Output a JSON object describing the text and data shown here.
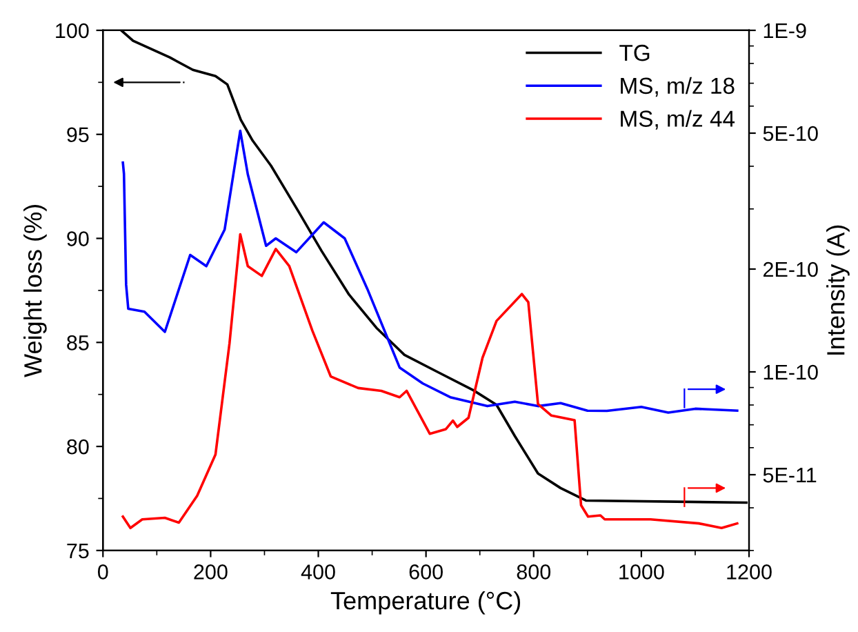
{
  "chart_data": {
    "type": "line",
    "xlabel": "Temperature (°C)",
    "ylabel": "Weight loss (%)",
    "y2label": "Intensity (A)",
    "xlim": [
      0,
      1200
    ],
    "xticks": [
      0,
      200,
      400,
      600,
      800,
      1000,
      1200
    ],
    "ylim": [
      75,
      100
    ],
    "yticks": [
      75,
      80,
      85,
      90,
      95,
      100
    ],
    "y2lim": [
      3e-11,
      1e-09
    ],
    "y2ticks": [
      {
        "value": 5e-11,
        "label": "5E-11"
      },
      {
        "value": 1e-10,
        "label": "1E-10"
      },
      {
        "value": 2e-10,
        "label": "2E-10"
      },
      {
        "value": 5e-10,
        "label": "5E-10"
      },
      {
        "value": 1e-09,
        "label": "1E-9"
      }
    ],
    "log": "y2",
    "grid": false,
    "legend": "top right",
    "marker": "none",
    "line_style": "solid",
    "series": [
      {
        "name": "TG",
        "color": "#000000",
        "x": [
          34,
          56,
          124,
          167,
          209,
          231,
          256,
          278,
          312,
          363,
          406,
          457,
          508,
          560,
          620,
          688,
          731,
          765,
          808,
          850,
          897,
          1195
        ],
        "values": [
          100,
          99.5,
          98.7,
          98.1,
          97.8,
          97.4,
          95.7,
          94.7,
          93.5,
          91.3,
          89.4,
          87.3,
          85.7,
          84.4,
          83.6,
          82.7,
          82.0,
          80.5,
          78.7,
          78.0,
          77.4,
          77.3
        ]
      },
      {
        "name": "MS, m/z 18",
        "color": "#0000ff",
        "axis": "y2",
        "x": [
          37,
          39,
          43,
          47,
          77,
          115,
          162,
          192,
          226,
          255,
          269,
          303,
          321,
          359,
          410,
          449,
          491,
          551,
          594,
          645,
          714,
          765,
          808,
          850,
          900,
          936,
          1000,
          1050,
          1100,
          1178
        ],
        "values": [
          4.1e-10,
          3.8e-10,
          1.8e-10,
          1.53e-10,
          1.5e-10,
          1.31e-10,
          2.2e-10,
          2.04e-10,
          2.61e-10,
          5.08e-10,
          3.79e-10,
          2.34e-10,
          2.46e-10,
          2.24e-10,
          2.74e-10,
          2.46e-10,
          1.75e-10,
          1.03e-10,
          9.25e-11,
          8.43e-11,
          7.94e-11,
          8.18e-11,
          7.94e-11,
          8.1e-11,
          7.7e-11,
          7.69e-11,
          7.9e-11,
          7.6e-11,
          7.8e-11,
          7.7e-11
        ]
      },
      {
        "name": "MS, m/z 44",
        "color": "#ff0000",
        "axis": "y2",
        "x": [
          37,
          51,
          73,
          115,
          141,
          175,
          209,
          235,
          255,
          269,
          295,
          321,
          346,
          389,
          423,
          474,
          517,
          551,
          564,
          607,
          637,
          650,
          658,
          679,
          705,
          731,
          778,
          790,
          808,
          833,
          876,
          888,
          901,
          924,
          932,
          1017,
          1107,
          1149,
          1178
        ],
        "values": [
          3.77e-11,
          3.49e-11,
          3.7e-11,
          3.74e-11,
          3.62e-11,
          4.34e-11,
          5.73e-11,
          1.21e-10,
          2.53e-10,
          2.04e-10,
          1.91e-10,
          2.29e-10,
          2.04e-10,
          1.32e-10,
          9.7e-11,
          8.97e-11,
          8.8e-11,
          8.43e-11,
          8.8e-11,
          6.59e-11,
          6.8e-11,
          7.2e-11,
          6.9e-11,
          7.34e-11,
          1.1e-10,
          1.41e-10,
          1.69e-10,
          1.6e-10,
          8.05e-11,
          7.45e-11,
          7.22e-11,
          4.07e-11,
          3.77e-11,
          3.8e-11,
          3.7e-11,
          3.7e-11,
          3.6e-11,
          3.49e-11,
          3.6e-11
        ]
      }
    ]
  }
}
